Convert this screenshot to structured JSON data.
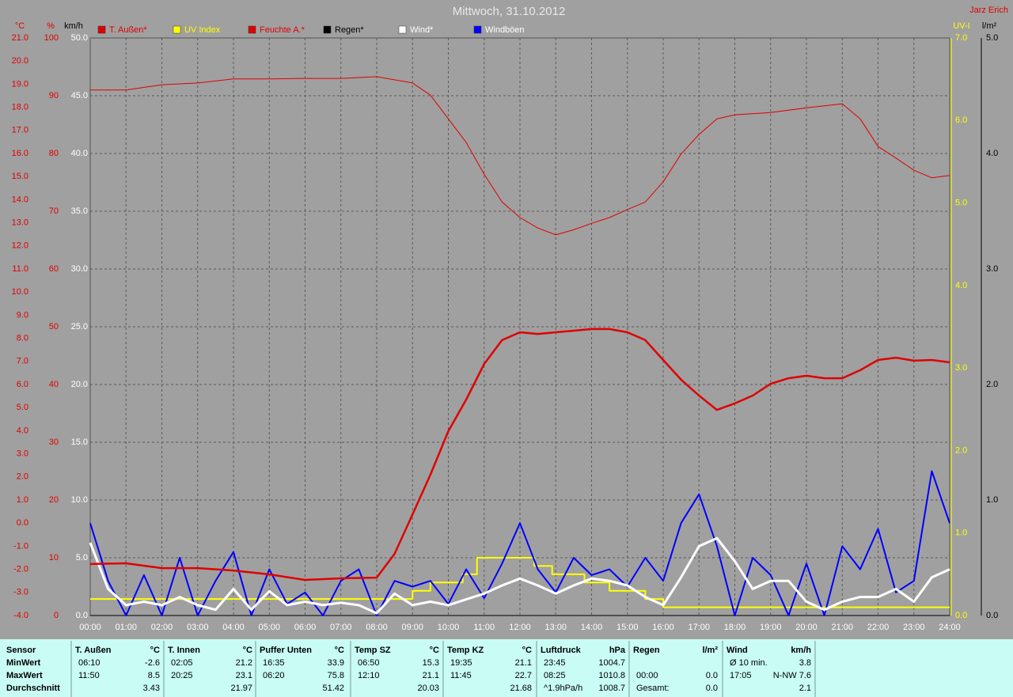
{
  "chart_data": {
    "type": "line",
    "title": "Mittwoch, 31.10.2012",
    "credit": "Jarz Erich",
    "xlim": [
      0,
      24
    ],
    "xticks": [
      {
        "value": 0,
        "label": "00:00"
      },
      {
        "value": 1,
        "label": "01:00"
      },
      {
        "value": 2,
        "label": "02:00"
      },
      {
        "value": 3,
        "label": "03:00"
      },
      {
        "value": 4,
        "label": "04:00"
      },
      {
        "value": 5,
        "label": "05:00"
      },
      {
        "value": 6,
        "label": "06:00"
      },
      {
        "value": 7,
        "label": "07:00"
      },
      {
        "value": 8,
        "label": "08:00"
      },
      {
        "value": 9,
        "label": "09:00"
      },
      {
        "value": 10,
        "label": "10:00"
      },
      {
        "value": 11,
        "label": "11:00"
      },
      {
        "value": 12,
        "label": "12:00"
      },
      {
        "value": 13,
        "label": "13:00"
      },
      {
        "value": 14,
        "label": "14:00"
      },
      {
        "value": 15,
        "label": "15:00"
      },
      {
        "value": 16,
        "label": "16:00"
      },
      {
        "value": 17,
        "label": "17:00"
      },
      {
        "value": 18,
        "label": "18:00"
      },
      {
        "value": 19,
        "label": "19:00"
      },
      {
        "value": 20,
        "label": "20:00"
      },
      {
        "value": 21,
        "label": "21:00"
      },
      {
        "value": 22,
        "label": "22:00"
      },
      {
        "value": 23,
        "label": "23:00"
      },
      {
        "value": 24,
        "label": "24:00"
      }
    ],
    "grid": true,
    "y_label": "km/h",
    "ylim": [
      0,
      50
    ],
    "yticks": [
      {
        "value": 0,
        "label": "0.0"
      },
      {
        "value": 5,
        "label": "5.0"
      },
      {
        "value": 10,
        "label": "10.0"
      },
      {
        "value": 15,
        "label": "15.0"
      },
      {
        "value": 20,
        "label": "20.0"
      },
      {
        "value": 25,
        "label": "25.0"
      },
      {
        "value": 30,
        "label": "30.0"
      },
      {
        "value": 35,
        "label": "35.0"
      },
      {
        "value": 40,
        "label": "40.0"
      },
      {
        "value": 45,
        "label": "45.0"
      },
      {
        "value": 50,
        "label": "50.0"
      }
    ],
    "y2_label": "°C",
    "y2lim": [
      -4,
      21
    ],
    "y2ticks": [
      {
        "value": -4,
        "label": "-4.0"
      },
      {
        "value": -3,
        "label": "-3.0"
      },
      {
        "value": -2,
        "label": "-2.0"
      },
      {
        "value": -1,
        "label": "-1.0"
      },
      {
        "value": 0,
        "label": "0.0"
      },
      {
        "value": 1,
        "label": "1.0"
      },
      {
        "value": 2,
        "label": "2.0"
      },
      {
        "value": 3,
        "label": "3.0"
      },
      {
        "value": 4,
        "label": "4.0"
      },
      {
        "value": 5,
        "label": "5.0"
      },
      {
        "value": 6,
        "label": "6.0"
      },
      {
        "value": 7,
        "label": "7.0"
      },
      {
        "value": 8,
        "label": "8.0"
      },
      {
        "value": 9,
        "label": "9.0"
      },
      {
        "value": 10,
        "label": "10.0"
      },
      {
        "value": 11,
        "label": "11.0"
      },
      {
        "value": 12,
        "label": "12.0"
      },
      {
        "value": 13,
        "label": "13.0"
      },
      {
        "value": 14,
        "label": "14.0"
      },
      {
        "value": 15,
        "label": "15.0"
      },
      {
        "value": 16,
        "label": "16.0"
      },
      {
        "value": 17,
        "label": "17.0"
      },
      {
        "value": 18,
        "label": "18.0"
      },
      {
        "value": 19,
        "label": "19.0"
      },
      {
        "value": 20,
        "label": "20.0"
      },
      {
        "value": 21,
        "label": "21.0"
      }
    ],
    "y3_label": "%",
    "y3lim": [
      0,
      100
    ],
    "y3ticks": [
      0,
      10,
      20,
      30,
      40,
      50,
      60,
      70,
      80,
      90,
      100
    ],
    "y4_label": "UV-I",
    "y4lim": [
      0,
      7
    ],
    "y4ticks": [
      {
        "value": 0,
        "label": "0.0"
      },
      {
        "value": 1,
        "label": "1.0"
      },
      {
        "value": 2,
        "label": "2.0"
      },
      {
        "value": 3,
        "label": "3.0"
      },
      {
        "value": 4,
        "label": "4.0"
      },
      {
        "value": 5,
        "label": "5.0"
      },
      {
        "value": 6,
        "label": "6.0"
      },
      {
        "value": 7,
        "label": "7.0"
      }
    ],
    "y5_label": "l/m²",
    "y5lim": [
      0,
      5
    ],
    "y5ticks": [
      {
        "value": 0,
        "label": "0.0"
      },
      {
        "value": 1,
        "label": "1.0"
      },
      {
        "value": 2,
        "label": "2.0"
      },
      {
        "value": 3,
        "label": "3.0"
      },
      {
        "value": 4,
        "label": "4.0"
      },
      {
        "value": 5,
        "label": "5.0"
      }
    ],
    "series": [
      {
        "name": "T. Außen*",
        "color": "#e00000",
        "axis": "y2",
        "width": 2.5,
        "x": [
          0,
          1,
          2,
          3,
          4,
          5,
          6,
          7,
          8,
          8.5,
          9,
          9.5,
          10,
          10.5,
          11,
          11.5,
          12,
          12.5,
          13,
          13.5,
          14,
          14.5,
          15,
          15.5,
          16,
          16.5,
          17,
          17.5,
          18,
          18.5,
          19,
          19.5,
          20,
          20.5,
          21,
          21.5,
          22,
          22.5,
          23,
          23.5,
          24
        ],
        "values": [
          -1.77,
          -1.74,
          -1.95,
          -1.95,
          -2.05,
          -2.22,
          -2.46,
          -2.39,
          -2.36,
          -1.33,
          0.38,
          2.1,
          3.98,
          5.35,
          6.89,
          7.92,
          8.26,
          8.19,
          8.26,
          8.33,
          8.4,
          8.4,
          8.26,
          7.92,
          7.06,
          6.21,
          5.52,
          4.9,
          5.18,
          5.52,
          6.03,
          6.27,
          6.38,
          6.27,
          6.27,
          6.62,
          7.06,
          7.16,
          7.03,
          7.06,
          6.96
        ]
      },
      {
        "name": "UV Index",
        "color": "#ffff00",
        "axis": "y4",
        "width": 2,
        "x": [
          0,
          9,
          9,
          9.5,
          9.5,
          10.4,
          10.4,
          10.8,
          10.8,
          12.4,
          12.4,
          12.9,
          12.9,
          13.8,
          13.8,
          14.5,
          14.5,
          15.5,
          15.5,
          16,
          16,
          24
        ],
        "values": [
          0.2,
          0.2,
          0.3,
          0.3,
          0.4,
          0.4,
          0.5,
          0.5,
          0.7,
          0.7,
          0.6,
          0.6,
          0.5,
          0.5,
          0.4,
          0.4,
          0.3,
          0.3,
          0.2,
          0.2,
          0.1,
          0.1
        ]
      },
      {
        "name": "Feuchte A.*",
        "color": "#e00000",
        "axis": "y3",
        "width": 1,
        "x": [
          0,
          1,
          2,
          3,
          4,
          5,
          6,
          7,
          8,
          9,
          9.5,
          10,
          10.5,
          11,
          11.5,
          12,
          12.5,
          13,
          13.5,
          14,
          14.5,
          15,
          15.5,
          16,
          16.5,
          17,
          17.5,
          18,
          19,
          20,
          21,
          21.5,
          22,
          22.5,
          23,
          23.5,
          24
        ],
        "values": [
          91,
          91,
          91.9,
          92.2,
          92.9,
          92.9,
          93,
          93,
          93.3,
          92.2,
          90.1,
          86,
          81.9,
          76.4,
          71.6,
          68.9,
          67.1,
          65.9,
          66.8,
          67.9,
          68.9,
          70.3,
          71.6,
          75.1,
          79.9,
          83.3,
          86,
          86.7,
          87.1,
          87.9,
          88.6,
          86,
          81.2,
          79.2,
          77.1,
          75.8,
          76.2
        ]
      },
      {
        "name": "Regen*",
        "color": "#000000",
        "axis": "y5",
        "width": 1,
        "x": [
          0,
          24
        ],
        "values": [
          0,
          0
        ]
      },
      {
        "name": "Wind*",
        "color": "#ffffff",
        "axis": "y",
        "width": 3,
        "x": [
          0,
          0.5,
          1,
          1.5,
          2,
          2.5,
          3,
          3.5,
          4,
          4.5,
          5,
          5.5,
          6,
          6.5,
          7,
          7.5,
          8,
          8.5,
          9,
          9.5,
          10,
          10.5,
          11,
          11.5,
          12,
          12.5,
          13,
          13.5,
          14,
          14.5,
          15,
          15.5,
          16,
          16.5,
          17,
          17.5,
          18,
          18.5,
          19,
          19.5,
          20,
          20.5,
          21,
          21.5,
          22,
          22.5,
          23,
          23.5,
          24
        ],
        "values": [
          6.3,
          2.3,
          0.9,
          1.2,
          0.9,
          1.6,
          0.9,
          0.5,
          2.3,
          0.5,
          2.1,
          0.9,
          1.2,
          0.9,
          1.1,
          0.9,
          0.2,
          1.9,
          0.9,
          1.2,
          0.9,
          1.4,
          1.9,
          2.6,
          3.2,
          2.6,
          1.9,
          2.6,
          3.2,
          3,
          2.6,
          1.6,
          0.9,
          3.3,
          6,
          6.7,
          4.7,
          2.3,
          3,
          3,
          1.2,
          0.5,
          1.2,
          1.6,
          1.6,
          2.3,
          1.2,
          3.3,
          4
        ]
      },
      {
        "name": "Windböen",
        "color": "#0000ff",
        "axis": "y",
        "width": 2,
        "x": [
          0,
          0.5,
          1,
          1.5,
          2,
          2.5,
          3,
          3.5,
          4,
          4.5,
          5,
          5.5,
          6,
          6.5,
          7,
          7.5,
          8,
          8.5,
          9,
          9.5,
          10,
          10.5,
          11,
          11.5,
          12,
          12.5,
          13,
          13.5,
          14,
          14.5,
          15,
          15.5,
          16,
          16.5,
          17,
          17.5,
          18,
          18.5,
          19,
          19.5,
          20,
          20.5,
          21,
          21.5,
          22,
          22.5,
          23,
          23.5,
          24
        ],
        "values": [
          8,
          3,
          0,
          3.5,
          0,
          5,
          0,
          3,
          5.5,
          0,
          4,
          1,
          2,
          0,
          3,
          4,
          0,
          3,
          2.5,
          3,
          1,
          4,
          1.5,
          4.5,
          8,
          4,
          2,
          5,
          3.5,
          4,
          2.5,
          5,
          3,
          8,
          10.5,
          6,
          0,
          5,
          3.5,
          0,
          4.5,
          0,
          6,
          4,
          7.5,
          2,
          3,
          12.5,
          8
        ]
      }
    ]
  },
  "table": {
    "row_labels": [
      "Sensor",
      "MinWert",
      "MaxWert",
      "Durchschnitt"
    ],
    "columns": [
      {
        "name": "T. Außen",
        "unit": "°C",
        "rows": [
          [
            "06:10",
            "-2.6"
          ],
          [
            "11:50",
            "8.5"
          ],
          [
            "3.43"
          ]
        ]
      },
      {
        "name": "T. Innen",
        "unit": "°C",
        "rows": [
          [
            "02:05",
            "21.2"
          ],
          [
            "20:25",
            "23.1"
          ],
          [
            "21.97"
          ]
        ]
      },
      {
        "name": "Puffer Unten",
        "unit": "°C",
        "rows": [
          [
            "16:35",
            "33.9"
          ],
          [
            "06:20",
            "75.8"
          ],
          [
            "51.42"
          ]
        ]
      },
      {
        "name": "Temp SZ",
        "unit": "°C",
        "rows": [
          [
            "06:50",
            "15.3"
          ],
          [
            "12:10",
            "21.1"
          ],
          [
            "20.03"
          ]
        ]
      },
      {
        "name": "Temp KZ",
        "unit": "°C",
        "rows": [
          [
            "19:35",
            "21.1"
          ],
          [
            "11:45",
            "22.7"
          ],
          [
            "21.68"
          ]
        ]
      },
      {
        "name": "Luftdruck",
        "unit": "hPa",
        "rows": [
          [
            "23:45",
            "1004.7"
          ],
          [
            "08:25",
            "1010.8"
          ],
          [
            "^1.9hPa/h",
            "1008.7"
          ]
        ]
      },
      {
        "name": "Regen",
        "unit": "l/m²",
        "rows": [
          null,
          [
            "00:00",
            "0.0"
          ],
          [
            "Gesamt:",
            "0.0"
          ]
        ]
      },
      {
        "name": "Wind",
        "unit": "km/h",
        "rows": [
          [
            "Ø 10 min.",
            "3.8"
          ],
          [
            "17:05",
            "N-NW 7.6"
          ],
          [
            "2.1"
          ]
        ]
      }
    ]
  }
}
